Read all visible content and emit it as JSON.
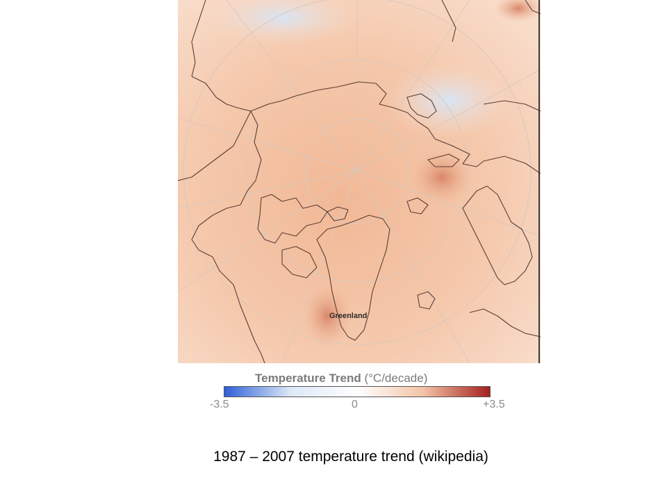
{
  "map": {
    "label": "Greenland"
  },
  "legend": {
    "title": "Temperature Trend",
    "unit": "(°C/decade)",
    "min_label": "-3.5",
    "mid_label": "0",
    "max_label": "+3.5",
    "colors": [
      "#2f5fd6",
      "#dde8f7",
      "#ffffff",
      "#f3c3a6",
      "#a3201e"
    ]
  },
  "caption": "1987 – 2007 temperature trend (wikipedia)"
}
